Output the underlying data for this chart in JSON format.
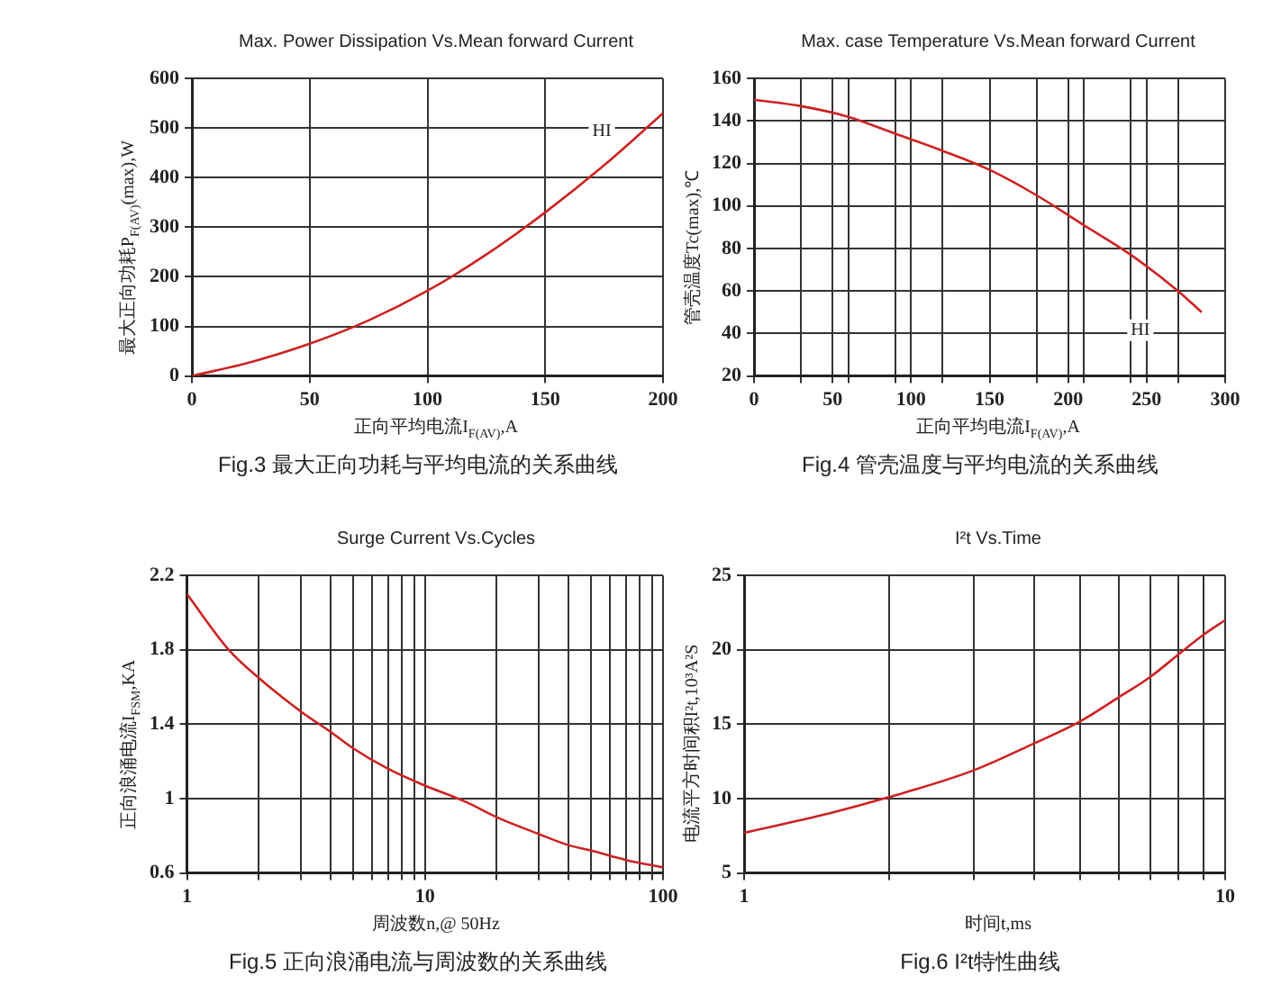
{
  "chart_data": [
    {
      "type": "line",
      "title": "Max. Power Dissipation Vs.Mean forward Current",
      "xlabel": "正向平均电流I$_{F(AV)}$,A",
      "ylabel": "最大正向功耗P$_{F(AV)}$(max),W",
      "x": [
        0,
        25,
        50,
        75,
        100,
        125,
        150,
        175,
        200
      ],
      "series": [
        {
          "name": "HI",
          "color": "#cc2222",
          "values": [
            0,
            28,
            65,
            112,
            172,
            245,
            330,
            425,
            530
          ]
        }
      ],
      "xlim": [
        0,
        200
      ],
      "xticks": [
        0,
        50,
        100,
        150,
        200
      ],
      "ylim": [
        0,
        600
      ],
      "yticks": [
        0,
        100,
        200,
        300,
        400,
        500,
        600
      ],
      "grid": true,
      "annotations": [
        "Fig.3 最大正向功耗与平均电流的关系曲线"
      ]
    },
    {
      "type": "line",
      "title": "Max. case Temperature Vs.Mean forward Current",
      "xlabel": "正向平均电流I$_{F(AV)}$,A",
      "ylabel": "管壳温度Tc(max),℃",
      "x": [
        0,
        30,
        60,
        90,
        120,
        150,
        180,
        210,
        240,
        270,
        285
      ],
      "series": [
        {
          "name": "HI",
          "color": "#cc2222",
          "values": [
            150,
            147,
            142,
            134,
            126,
            117,
            105,
            91,
            77,
            60,
            50
          ]
        }
      ],
      "xlim": [
        0,
        300
      ],
      "xticks": [
        0,
        {
          "value": 30,
          "label": null
        },
        50,
        {
          "value": 60,
          "label": null
        },
        {
          "value": 90,
          "label": null
        },
        100,
        {
          "value": 120,
          "label": null
        },
        150,
        {
          "value": 180,
          "label": null
        },
        200,
        {
          "value": 210,
          "label": null
        },
        {
          "value": 240,
          "label": null
        },
        250,
        {
          "value": 270,
          "label": null
        },
        300
      ],
      "ylim": [
        20,
        160
      ],
      "yticks": [
        20,
        40,
        60,
        80,
        100,
        120,
        140,
        160
      ],
      "grid": true,
      "annotations": [
        "Fig.4 管壳温度与平均电流的关系曲线"
      ]
    },
    {
      "type": "line",
      "title": "Surge Current Vs.Cycles",
      "xlabel": "周波数n,@ 50Hz",
      "ylabel": "正向浪涌电流I$_{FSM}$,KA",
      "log": "x",
      "x": [
        1,
        1.5,
        2,
        3,
        4,
        5,
        7,
        10,
        15,
        20,
        30,
        40,
        50,
        70,
        100
      ],
      "series": [
        {
          "color": "#cc2222",
          "values": [
            2.1,
            1.8,
            1.65,
            1.47,
            1.36,
            1.27,
            1.16,
            1.07,
            0.98,
            0.9,
            0.81,
            0.75,
            0.72,
            0.67,
            0.63
          ]
        }
      ],
      "xlim": [
        1,
        100
      ],
      "xticks": [
        1,
        {
          "value": 2,
          "label": null
        },
        {
          "value": 3,
          "label": null
        },
        {
          "value": 4,
          "label": null
        },
        {
          "value": 5,
          "label": null
        },
        {
          "value": 6,
          "label": null
        },
        {
          "value": 7,
          "label": null
        },
        {
          "value": 8,
          "label": null
        },
        {
          "value": 9,
          "label": null
        },
        10,
        {
          "value": 20,
          "label": null
        },
        {
          "value": 30,
          "label": null
        },
        {
          "value": 40,
          "label": null
        },
        {
          "value": 50,
          "label": null
        },
        {
          "value": 60,
          "label": null
        },
        {
          "value": 70,
          "label": null
        },
        {
          "value": 80,
          "label": null
        },
        {
          "value": 90,
          "label": null
        },
        100
      ],
      "ylim": [
        0.6,
        2.2
      ],
      "yticks": [
        0.6,
        1,
        1.4,
        1.8,
        2.2
      ],
      "grid": true,
      "annotations": [
        "Fig.5 正向浪涌电流与周波数的关系曲线"
      ]
    },
    {
      "type": "line",
      "title": "I²t  Vs.Time",
      "xlabel": "时间t,ms",
      "ylabel": "电流平方时间积I²t,10³A²S",
      "log": "x",
      "x": [
        1,
        1.5,
        2,
        3,
        4,
        5,
        6,
        7,
        8,
        9,
        10
      ],
      "series": [
        {
          "color": "#cc2222",
          "values": [
            7.7,
            9.0,
            10.1,
            11.9,
            13.7,
            15.2,
            16.8,
            18.2,
            19.7,
            21,
            22
          ]
        }
      ],
      "xlim": [
        1,
        10
      ],
      "xticks": [
        1,
        {
          "value": 2,
          "label": null
        },
        {
          "value": 3,
          "label": null
        },
        {
          "value": 4,
          "label": null
        },
        {
          "value": 5,
          "label": null
        },
        {
          "value": 6,
          "label": null
        },
        {
          "value": 7,
          "label": null
        },
        {
          "value": 8,
          "label": null
        },
        {
          "value": 9,
          "label": null
        },
        10
      ],
      "ylim": [
        5,
        25
      ],
      "yticks": [
        5,
        10,
        15,
        20,
        25
      ],
      "grid": true,
      "annotations": [
        "Fig.6 I²t特性曲线"
      ]
    }
  ]
}
